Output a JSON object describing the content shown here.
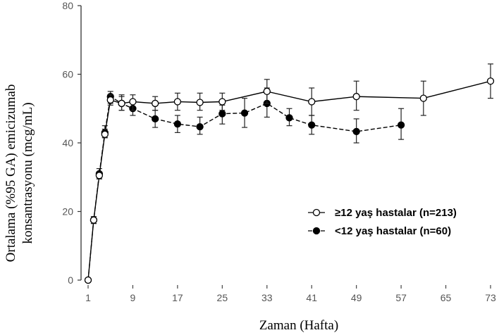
{
  "chart_data": {
    "type": "line",
    "xlabel": "Zaman (Hafta)",
    "ylabel_lines": [
      "Ortalama (%95 GA) emicizumab",
      "konsantrasyonu (mcg/mL)"
    ],
    "xticks": [
      1,
      9,
      17,
      25,
      33,
      41,
      49,
      57,
      65,
      73
    ],
    "yticks": [
      0,
      20,
      40,
      60,
      80
    ],
    "xlim": [
      0,
      74
    ],
    "ylim": [
      0,
      80
    ],
    "grid": false,
    "legend_position": "center-right",
    "series": [
      {
        "name": "≥12 yaş hastalar (n=213)",
        "marker": "open-circle",
        "line": "solid",
        "color": "#000000",
        "points": [
          {
            "x": 1,
            "y": 0,
            "lo": 0,
            "hi": 0
          },
          {
            "x": 2,
            "y": 17.5,
            "lo": 16.5,
            "hi": 18.5
          },
          {
            "x": 3,
            "y": 30.5,
            "lo": 29.5,
            "hi": 31.5
          },
          {
            "x": 4,
            "y": 42.5,
            "lo": 41.5,
            "hi": 44
          },
          {
            "x": 5,
            "y": 52.5,
            "lo": 51,
            "hi": 54
          },
          {
            "x": 7,
            "y": 51.5,
            "lo": 49.5,
            "hi": 53.5
          },
          {
            "x": 9,
            "y": 52,
            "lo": 49.5,
            "hi": 54
          },
          {
            "x": 13,
            "y": 51.5,
            "lo": 49.5,
            "hi": 53.5
          },
          {
            "x": 17,
            "y": 52,
            "lo": 49.5,
            "hi": 54.5
          },
          {
            "x": 21,
            "y": 51.8,
            "lo": 49.5,
            "hi": 54.5
          },
          {
            "x": 25,
            "y": 52,
            "lo": 49.5,
            "hi": 54.5
          },
          {
            "x": 33,
            "y": 55,
            "lo": 51.5,
            "hi": 58.5
          },
          {
            "x": 41,
            "y": 52,
            "lo": 48,
            "hi": 56
          },
          {
            "x": 49,
            "y": 53.5,
            "lo": 49.5,
            "hi": 58
          },
          {
            "x": 61,
            "y": 53,
            "lo": 48,
            "hi": 58
          },
          {
            "x": 73,
            "y": 58,
            "lo": 53,
            "hi": 63
          }
        ]
      },
      {
        "name": "<12 yaş hastalar (n=60)",
        "marker": "filled-circle",
        "line": "dashed",
        "color": "#000000",
        "points": [
          {
            "x": 1,
            "y": 0,
            "lo": 0,
            "hi": 0
          },
          {
            "x": 2,
            "y": 17.5,
            "lo": 16.5,
            "hi": 18.5
          },
          {
            "x": 3,
            "y": 31,
            "lo": 29.5,
            "hi": 32.5
          },
          {
            "x": 4,
            "y": 43,
            "lo": 41.5,
            "hi": 45
          },
          {
            "x": 5,
            "y": 53.5,
            "lo": 51.5,
            "hi": 55
          },
          {
            "x": 7,
            "y": 51.5,
            "lo": 49.5,
            "hi": 54
          },
          {
            "x": 9,
            "y": 50,
            "lo": 48,
            "hi": 52
          },
          {
            "x": 13,
            "y": 47,
            "lo": 44.5,
            "hi": 49.5
          },
          {
            "x": 17,
            "y": 45.5,
            "lo": 43,
            "hi": 48
          },
          {
            "x": 21,
            "y": 44.7,
            "lo": 42.5,
            "hi": 47.5
          },
          {
            "x": 25,
            "y": 48.5,
            "lo": 45.5,
            "hi": 51
          },
          {
            "x": 29,
            "y": 48.7,
            "lo": 44.5,
            "hi": 53
          },
          {
            "x": 33,
            "y": 51.5,
            "lo": 47.5,
            "hi": 56
          },
          {
            "x": 37,
            "y": 47.3,
            "lo": 45,
            "hi": 50
          },
          {
            "x": 41,
            "y": 45.2,
            "lo": 42.5,
            "hi": 48
          },
          {
            "x": 49,
            "y": 43.3,
            "lo": 40,
            "hi": 47
          },
          {
            "x": 57,
            "y": 45.2,
            "lo": 41,
            "hi": 50
          }
        ]
      }
    ]
  }
}
